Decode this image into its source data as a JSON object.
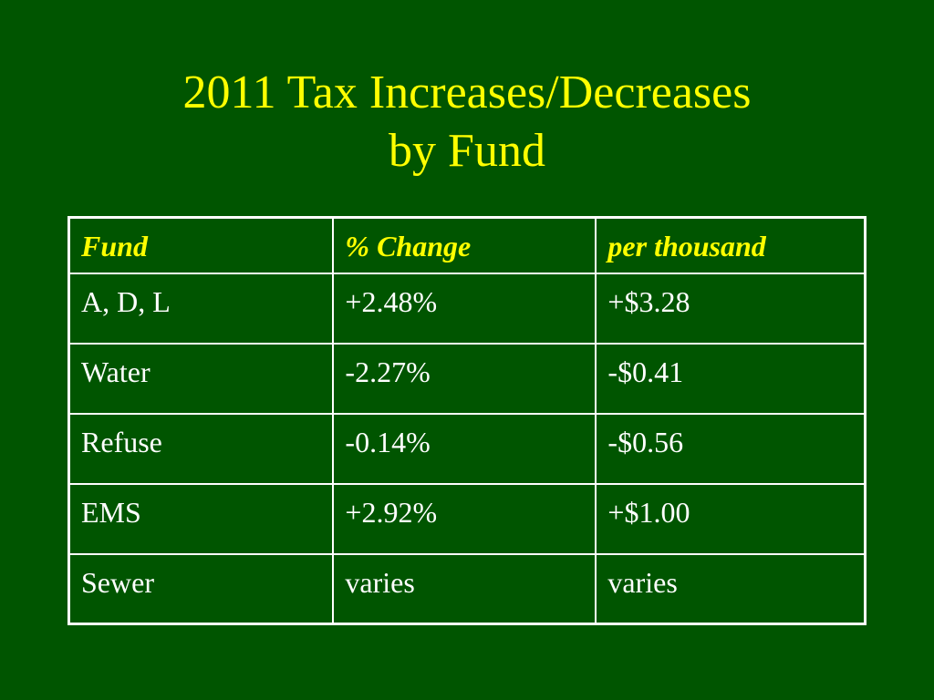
{
  "colors": {
    "background": "#005500",
    "title": "#ffff00",
    "header_text": "#ffff00",
    "cell_text": "#ffffff",
    "border": "#ffffff"
  },
  "slide": {
    "title_line1": "2011 Tax Increases/Decreases",
    "title_line2": "by Fund"
  },
  "table": {
    "columns": [
      "Fund",
      "% Change",
      "per thousand"
    ],
    "rows": [
      [
        "A, D, L",
        "+2.48%",
        "+$3.28"
      ],
      [
        "Water",
        "-2.27%",
        "-$0.41"
      ],
      [
        "Refuse",
        "-0.14%",
        "-$0.56"
      ],
      [
        "EMS",
        "+2.92%",
        "+$1.00"
      ],
      [
        "Sewer",
        "varies",
        "varies"
      ]
    ]
  }
}
